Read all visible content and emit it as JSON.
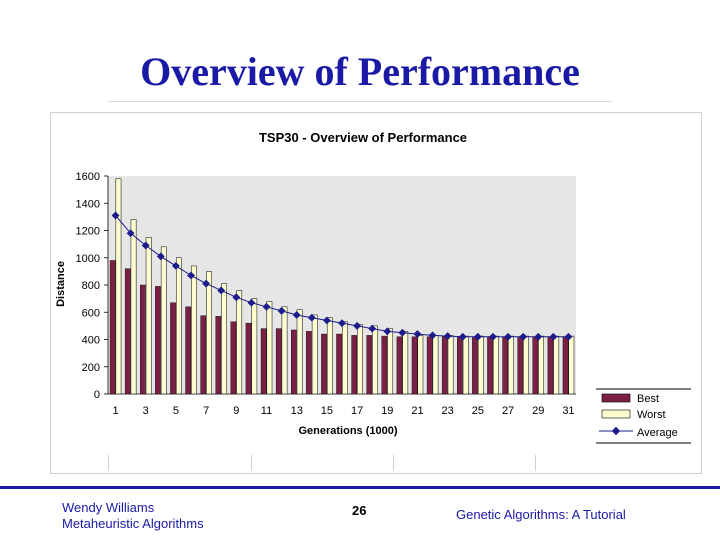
{
  "slide": {
    "title": "Overview of Performance"
  },
  "footer": {
    "author": "Wendy Williams",
    "course": "Metaheuristic Algorithms",
    "page_number": "26",
    "subject": "Genetic Algorithms: A Tutorial"
  },
  "colors": {
    "title": "#1a1aa6",
    "best": "#7b2045",
    "worst": "#fdfdd0",
    "average": "#1c1c8c",
    "plot_bg": "#e6e6e6"
  },
  "chart_data": {
    "type": "bar",
    "title": "TSP30 - Overview of Performance",
    "xlabel": "Generations (1000)",
    "ylabel": "Distance",
    "ylim": [
      0,
      1600
    ],
    "yticks": [
      0,
      200,
      400,
      600,
      800,
      1000,
      1200,
      1400,
      1600
    ],
    "categories": [
      "1",
      "2",
      "3",
      "4",
      "5",
      "6",
      "7",
      "8",
      "9",
      "10",
      "11",
      "12",
      "13",
      "14",
      "15",
      "16",
      "17",
      "18",
      "19",
      "20",
      "21",
      "22",
      "23",
      "24",
      "25",
      "26",
      "27",
      "28",
      "29",
      "30",
      "31"
    ],
    "x_tick_labels": [
      "1",
      "3",
      "5",
      "7",
      "9",
      "11",
      "13",
      "15",
      "17",
      "19",
      "21",
      "23",
      "25",
      "27",
      "29",
      "31"
    ],
    "legend_position": "bottom-right",
    "series": [
      {
        "name": "Best",
        "kind": "bar",
        "values": [
          980,
          920,
          800,
          790,
          670,
          640,
          575,
          570,
          530,
          520,
          480,
          480,
          470,
          460,
          440,
          440,
          430,
          430,
          425,
          420,
          420,
          420,
          420,
          420,
          420,
          420,
          420,
          420,
          420,
          420,
          420
        ]
      },
      {
        "name": "Worst",
        "kind": "bar",
        "values": [
          1580,
          1280,
          1150,
          1080,
          1000,
          940,
          900,
          810,
          760,
          700,
          680,
          640,
          620,
          580,
          560,
          530,
          510,
          500,
          480,
          460,
          430,
          430,
          430,
          425,
          425,
          425,
          425,
          425,
          425,
          425,
          425
        ]
      },
      {
        "name": "Average",
        "kind": "line",
        "values": [
          1310,
          1180,
          1090,
          1010,
          940,
          870,
          810,
          760,
          710,
          670,
          640,
          610,
          580,
          560,
          540,
          520,
          500,
          480,
          460,
          450,
          440,
          430,
          425,
          420,
          420,
          420,
          420,
          420,
          420,
          420,
          420
        ]
      }
    ]
  }
}
